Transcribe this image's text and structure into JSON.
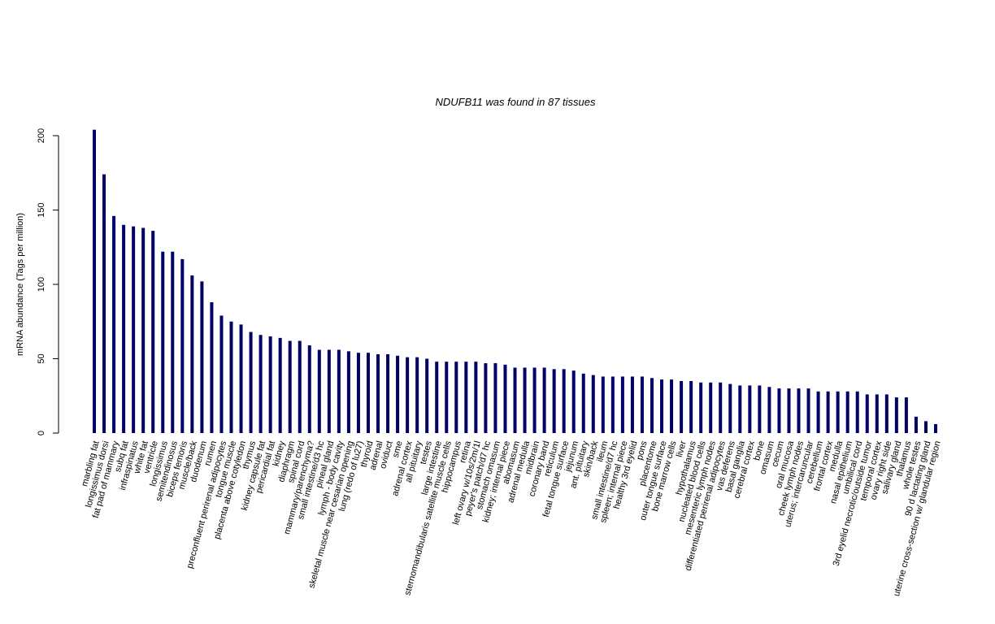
{
  "chart_data": {
    "type": "bar",
    "title": "NDUFB11  was found in  87  tissues",
    "y_label": "mRNA abundance (Tags per million)",
    "color": "#000066",
    "ylim": [
      0,
      200
    ],
    "yticks": [
      0,
      50,
      100,
      150,
      200
    ],
    "categories": [
      "marbling fat",
      "longissimus dorsi",
      "fat pad of mammary",
      "subq fat",
      "infraspinatus",
      "white fat",
      "ventricle",
      "longissimus",
      "semitendinosus",
      "biceps femoris",
      "muscle/back",
      "duodenum",
      "rumen",
      "preconfluent perirenal adipocytes",
      "tongue muscle",
      "placenta above cotyledon",
      "thymus",
      "kidney capsule fat",
      "pericardial fat",
      "kidney",
      "diaphragm",
      "spinal cord",
      "mammary/parenchyma?",
      "small intestine/d3 hc",
      "pineal gland",
      "lymph - body cavity",
      "skeletal muscle near cesarian opening",
      "lung (redo of lu27)",
      "thyroid",
      "adrenal",
      "oviduct",
      "sme",
      "adrenal cortex",
      "all pituitary",
      "testes",
      "large intestine",
      "sternomandibularis satellite muscle cells",
      "hippocampus",
      "retina",
      "left ovary w/10s/2m/1l",
      "peyer's patch/d7 hc",
      "stomach omasum",
      "kidney; internal piece",
      "abomasum",
      "adrenal medulla",
      "midbrain",
      "coronary band",
      "reticulum",
      "fetal tongue surface",
      "jejunum",
      "ant. pituitary",
      "skin/back",
      "ileum",
      "small intestine/d7 hc",
      "spleen; internal piece",
      "healthy 3rd eyelid",
      "pons",
      "placentome",
      "outer tongue surface",
      "bone marrow cells",
      "liver",
      "hypothalamus",
      "nucleated blood cells",
      "mesenteric lymph nodes",
      "differentiated perirenal adipocytes",
      "vas deferens",
      "basal ganglia",
      "cerebral cortex",
      "bone",
      "omasum",
      "cecum",
      "oral mucosa",
      "cheek lymph nodes",
      "uterus; intercaruncular",
      "cerebellum",
      "frontal cortex",
      "medulla",
      "nasal epithelium",
      "umbilical cord",
      "3rd eyelid necrotic/outside tumor",
      "temporal cortex",
      "ovary right side",
      "salivary gland",
      "thalamus",
      "whole testes",
      "90 d lactating gland",
      "uterine cross-section w/ glandular region"
    ],
    "values": [
      204,
      174,
      146,
      140,
      139,
      138,
      136,
      122,
      122,
      117,
      106,
      102,
      88,
      79,
      75,
      73,
      68,
      66,
      65,
      64,
      62,
      62,
      59,
      56,
      56,
      56,
      55,
      54,
      54,
      53,
      53,
      52,
      51,
      51,
      50,
      48,
      48,
      48,
      48,
      48,
      47,
      47,
      46,
      44,
      44,
      44,
      44,
      43,
      43,
      42,
      40,
      39,
      38,
      38,
      38,
      38,
      38,
      37,
      36,
      36,
      35,
      35,
      34,
      34,
      34,
      33,
      32,
      32,
      32,
      31,
      30,
      30,
      30,
      30,
      28,
      28,
      28,
      28,
      28,
      26,
      26,
      26,
      24,
      24,
      11,
      8,
      6
    ]
  }
}
